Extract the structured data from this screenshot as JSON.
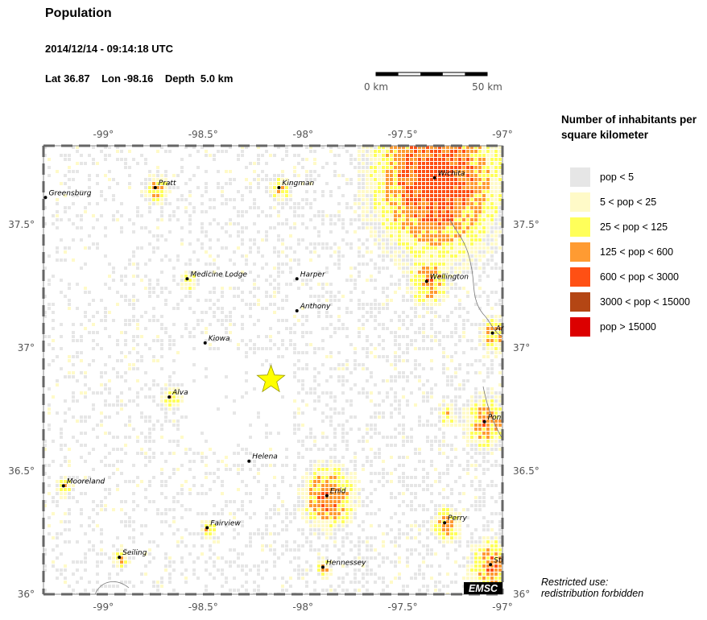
{
  "header": {
    "title": "Population",
    "datetime": "2014/12/14 - 09:14:18 UTC",
    "lat_label": "Lat 36.87",
    "lon_label": "Lon -98.16",
    "depth_label": "Depth  5.0 km"
  },
  "scale": {
    "start_label": "0 km",
    "end_label": "50 km"
  },
  "map": {
    "bounds": {
      "lon_min": -99.3,
      "lon_max": -97.0,
      "lat_min": 36.0,
      "lat_max": 37.82
    },
    "lon_ticks": [
      "-99°",
      "-98.5°",
      "-98°",
      "-97.5°",
      "-97°"
    ],
    "lat_ticks": [
      "37.5°",
      "37°",
      "36.5°",
      "36°"
    ],
    "epicenter": {
      "lat": 36.87,
      "lon": -98.16,
      "symbol": "star-icon",
      "color": "#ffff00"
    },
    "cities": [
      {
        "name": "Greensburg",
        "lat": 37.61,
        "lon": -99.29
      },
      {
        "name": "Pratt",
        "lat": 37.65,
        "lon": -98.74
      },
      {
        "name": "Kingman",
        "lat": 37.65,
        "lon": -98.12
      },
      {
        "name": "Wichita",
        "lat": 37.69,
        "lon": -97.34
      },
      {
        "name": "Medicine Lodge",
        "lat": 37.28,
        "lon": -98.58
      },
      {
        "name": "Harper",
        "lat": 37.28,
        "lon": -98.03
      },
      {
        "name": "Wellington",
        "lat": 37.27,
        "lon": -97.38
      },
      {
        "name": "Anthony",
        "lat": 37.15,
        "lon": -98.03
      },
      {
        "name": "Ar",
        "lat": 37.06,
        "lon": -97.05
      },
      {
        "name": "Kiowa",
        "lat": 37.02,
        "lon": -98.49
      },
      {
        "name": "Alva",
        "lat": 36.8,
        "lon": -98.67
      },
      {
        "name": "Pon",
        "lat": 36.7,
        "lon": -97.09
      },
      {
        "name": "Helena",
        "lat": 36.54,
        "lon": -98.27
      },
      {
        "name": "Mooreland",
        "lat": 36.44,
        "lon": -99.2
      },
      {
        "name": "Enid",
        "lat": 36.4,
        "lon": -97.88
      },
      {
        "name": "Perry",
        "lat": 36.29,
        "lon": -97.29
      },
      {
        "name": "Fairview",
        "lat": 36.27,
        "lon": -98.48
      },
      {
        "name": "Seiling",
        "lat": 36.15,
        "lon": -98.92
      },
      {
        "name": "Hennessey",
        "lat": 36.11,
        "lon": -97.9
      },
      {
        "name": "Sti",
        "lat": 36.12,
        "lon": -97.06
      }
    ],
    "watermark": "EMSC"
  },
  "legend": {
    "title": "Number of inhabitants per square kilometer",
    "items": [
      {
        "label": "pop < 5",
        "color": "#e6e6e6"
      },
      {
        "label": "5 < pop < 25",
        "color": "#fffac8"
      },
      {
        "label": "25 < pop < 125",
        "color": "#ffff5a"
      },
      {
        "label": "125 < pop < 600",
        "color": "#ff9b32"
      },
      {
        "label": "600 < pop < 3000",
        "color": "#ff5014"
      },
      {
        "label": "3000 < pop < 15000",
        "color": "#b44614"
      },
      {
        "label": "pop > 15000",
        "color": "#dc0000"
      }
    ]
  },
  "footer": {
    "restricted_line1": "Restricted use:",
    "restricted_line2": "redistribution forbidden"
  }
}
